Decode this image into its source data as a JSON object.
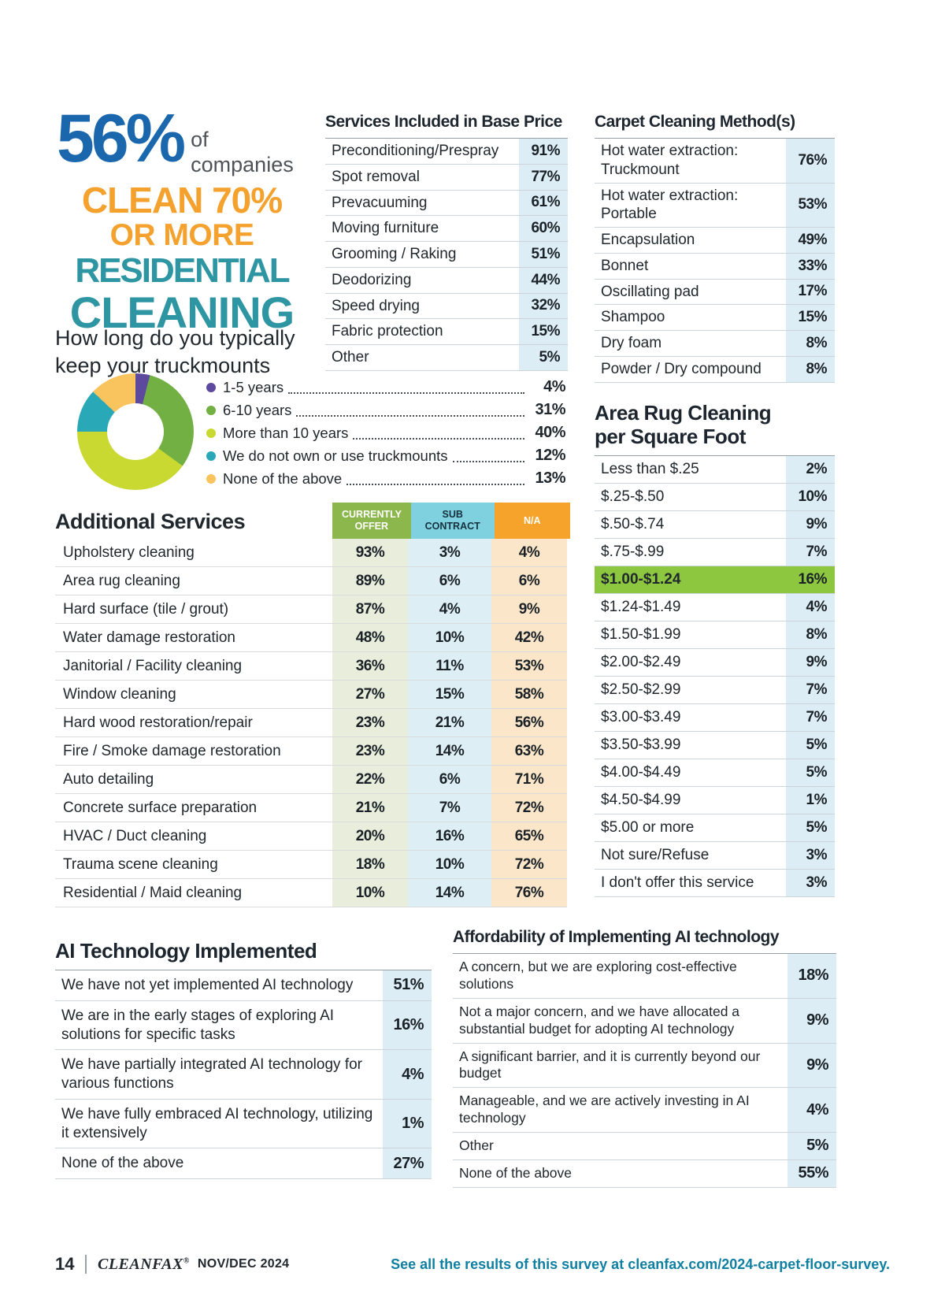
{
  "headline": {
    "stat": "56%",
    "suffix_line1": "of",
    "suffix_line2": "companies",
    "line1": "CLEAN 70%",
    "line2": "OR MORE",
    "line3": "RESIDENTIAL",
    "line4": "CLEANING"
  },
  "services": {
    "title": "Services Included in Base Price",
    "rows": [
      {
        "label": "Preconditioning/Prespray",
        "value": "91%"
      },
      {
        "label": "Spot removal",
        "value": "77%"
      },
      {
        "label": "Prevacuuming",
        "value": "61%"
      },
      {
        "label": "Moving furniture",
        "value": "60%"
      },
      {
        "label": "Grooming / Raking",
        "value": "51%"
      },
      {
        "label": "Deodorizing",
        "value": "44%"
      },
      {
        "label": "Speed drying",
        "value": "32%"
      },
      {
        "label": "Fabric protection",
        "value": "15%"
      },
      {
        "label": "Other",
        "value": "5%"
      }
    ]
  },
  "carpet": {
    "title": "Carpet Cleaning Method(s)",
    "rows": [
      {
        "label": "Hot water extraction: Truckmount",
        "value": "76%"
      },
      {
        "label": "Hot water extraction: Portable",
        "value": "53%"
      },
      {
        "label": "Encapsulation",
        "value": "49%"
      },
      {
        "label": "Bonnet",
        "value": "33%"
      },
      {
        "label": "Oscillating pad",
        "value": "17%"
      },
      {
        "label": "Shampoo",
        "value": "15%"
      },
      {
        "label": "Dry foam",
        "value": "8%"
      },
      {
        "label": "Powder / Dry compound",
        "value": "8%"
      }
    ]
  },
  "truckmounts": {
    "title_lines": [
      "How long do you typically",
      "keep your truckmounts"
    ],
    "segments": [
      {
        "label": "1-5 years",
        "value": "4%",
        "pct": 4,
        "color": "#5d4a9f"
      },
      {
        "label": "6-10 years",
        "value": "31%",
        "pct": 31,
        "color": "#72b043"
      },
      {
        "label": "More than 10 years",
        "value": "40%",
        "pct": 40,
        "color": "#c9d932"
      },
      {
        "label": "We do not own or use truckmounts",
        "value": "12%",
        "pct": 12,
        "color": "#29a9b8"
      },
      {
        "label": "None of the above",
        "value": "13%",
        "pct": 13,
        "color": "#f9c45e"
      }
    ]
  },
  "additional": {
    "title": "Additional Services",
    "col1": "CURRENTLY OFFER",
    "col2": "SUB CONTRACT",
    "col3": "N/A",
    "rows": [
      {
        "label": "Upholstery cleaning",
        "offer": "93%",
        "sub": "3%",
        "na": "4%"
      },
      {
        "label": "Area rug cleaning",
        "offer": "89%",
        "sub": "6%",
        "na": "6%"
      },
      {
        "label": "Hard surface (tile / grout)",
        "offer": "87%",
        "sub": "4%",
        "na": "9%"
      },
      {
        "label": "Water damage restoration",
        "offer": "48%",
        "sub": "10%",
        "na": "42%"
      },
      {
        "label": "Janitorial / Facility cleaning",
        "offer": "36%",
        "sub": "11%",
        "na": "53%"
      },
      {
        "label": "Window cleaning",
        "offer": "27%",
        "sub": "15%",
        "na": "58%"
      },
      {
        "label": "Hard wood restoration/repair",
        "offer": "23%",
        "sub": "21%",
        "na": "56%"
      },
      {
        "label": "Fire / Smoke damage restoration",
        "offer": "23%",
        "sub": "14%",
        "na": "63%"
      },
      {
        "label": "Auto detailing",
        "offer": "22%",
        "sub": "6%",
        "na": "71%"
      },
      {
        "label": "Concrete surface preparation",
        "offer": "21%",
        "sub": "7%",
        "na": "72%"
      },
      {
        "label": "HVAC / Duct cleaning",
        "offer": "20%",
        "sub": "16%",
        "na": "65%"
      },
      {
        "label": "Trauma scene cleaning",
        "offer": "18%",
        "sub": "10%",
        "na": "72%"
      },
      {
        "label": "Residential / Maid cleaning",
        "offer": "10%",
        "sub": "14%",
        "na": "76%"
      }
    ]
  },
  "arearug": {
    "title_lines": [
      "Area Rug Cleaning",
      "per Square Foot"
    ],
    "rows": [
      {
        "label": "Less than $.25",
        "value": "2%"
      },
      {
        "label": "$.25-$.50",
        "value": "10%"
      },
      {
        "label": "$.50-$.74",
        "value": "9%"
      },
      {
        "label": "$.75-$.99",
        "value": "7%"
      },
      {
        "label": "$1.00-$1.24",
        "value": "16%",
        "cls": "highlight"
      },
      {
        "label": "$1.24-$1.49",
        "value": "4%"
      },
      {
        "label": "$1.50-$1.99",
        "value": "8%"
      },
      {
        "label": "$2.00-$2.49",
        "value": "9%"
      },
      {
        "label": "$2.50-$2.99",
        "value": "7%"
      },
      {
        "label": "$3.00-$3.49",
        "value": "7%"
      },
      {
        "label": "$3.50-$3.99",
        "value": "5%"
      },
      {
        "label": "$4.00-$4.49",
        "value": "5%"
      },
      {
        "label": "$4.50-$4.99",
        "value": "1%"
      },
      {
        "label": "$5.00 or more",
        "value": "5%"
      },
      {
        "label": "Not sure/Refuse",
        "value": "3%"
      },
      {
        "label": "I don't offer this service",
        "value": "3%"
      }
    ]
  },
  "ai": {
    "title": "AI Technology Implemented",
    "rows": [
      {
        "label": "We have not yet implemented AI technology",
        "value": "51%"
      },
      {
        "label": "We are in the early stages of exploring AI solutions for specific tasks",
        "value": "16%"
      },
      {
        "label": "We have partially integrated AI technology for various functions",
        "value": "4%"
      },
      {
        "label": "We have fully embraced AI technology, utilizing it extensively",
        "value": "1%"
      },
      {
        "label": "None of the above",
        "value": "27%"
      }
    ]
  },
  "afford": {
    "title": "Affordability of Implementing AI technology",
    "rows": [
      {
        "label": "A concern, but we are exploring cost-effective solutions",
        "value": "18%"
      },
      {
        "label": "Not a major concern, and we have allocated a substantial budget for adopting AI technology",
        "value": "9%"
      },
      {
        "label": "A significant barrier, and it is currently beyond our budget",
        "value": "9%"
      },
      {
        "label": "Manageable, and we are actively investing in AI technology",
        "value": "4%"
      },
      {
        "label": "Other",
        "value": "5%"
      },
      {
        "label": "None of the above",
        "value": "55%"
      }
    ]
  },
  "footer": {
    "page": "14",
    "brand": "CLEANFAX",
    "reg": "®",
    "issue": "NOV/DEC 2024",
    "link": "See all the results of this survey at cleanfax.com/2024-carpet-floor-survey."
  },
  "chart_data": [
    {
      "type": "table",
      "title": "Services Included in Base Price",
      "categories": [
        "Preconditioning/Prespray",
        "Spot removal",
        "Prevacuuming",
        "Moving furniture",
        "Grooming / Raking",
        "Deodorizing",
        "Speed drying",
        "Fabric protection",
        "Other"
      ],
      "values": [
        91,
        77,
        61,
        60,
        51,
        44,
        32,
        15,
        5
      ],
      "unit": "%"
    },
    {
      "type": "table",
      "title": "Carpet Cleaning Method(s)",
      "categories": [
        "Hot water extraction: Truckmount",
        "Hot water extraction: Portable",
        "Encapsulation",
        "Bonnet",
        "Oscillating pad",
        "Shampoo",
        "Dry foam",
        "Powder / Dry compound"
      ],
      "values": [
        76,
        53,
        49,
        33,
        17,
        15,
        8,
        8
      ],
      "unit": "%"
    },
    {
      "type": "pie",
      "title": "How long do you typically keep your truckmounts",
      "categories": [
        "1-5 years",
        "6-10 years",
        "More than 10 years",
        "We do not own or use truckmounts",
        "None of the above"
      ],
      "values": [
        4,
        31,
        40,
        12,
        13
      ],
      "colors": [
        "#5d4a9f",
        "#72b043",
        "#c9d932",
        "#29a9b8",
        "#f9c45e"
      ],
      "donut": true,
      "legend_position": "right",
      "unit": "%"
    },
    {
      "type": "table",
      "title": "Additional Services",
      "categories": [
        "Upholstery cleaning",
        "Area rug cleaning",
        "Hard surface (tile / grout)",
        "Water damage restoration",
        "Janitorial / Facility cleaning",
        "Window cleaning",
        "Hard wood restoration/repair",
        "Fire / Smoke damage restoration",
        "Auto detailing",
        "Concrete surface preparation",
        "HVAC / Duct cleaning",
        "Trauma scene cleaning",
        "Residential / Maid cleaning"
      ],
      "series": [
        {
          "name": "Currently offer",
          "values": [
            93,
            89,
            87,
            48,
            36,
            27,
            23,
            23,
            22,
            21,
            20,
            18,
            10
          ]
        },
        {
          "name": "Sub contract",
          "values": [
            3,
            6,
            4,
            10,
            11,
            15,
            21,
            14,
            6,
            7,
            16,
            10,
            14
          ]
        },
        {
          "name": "N/A",
          "values": [
            4,
            6,
            9,
            42,
            53,
            58,
            56,
            63,
            71,
            72,
            65,
            72,
            76
          ]
        }
      ],
      "unit": "%"
    },
    {
      "type": "table",
      "title": "Area Rug Cleaning per Square Foot",
      "categories": [
        "Less than $.25",
        "$.25-$.50",
        "$.50-$.74",
        "$.75-$.99",
        "$1.00-$1.24",
        "$1.24-$1.49",
        "$1.50-$1.99",
        "$2.00-$2.49",
        "$2.50-$2.99",
        "$3.00-$3.49",
        "$3.50-$3.99",
        "$4.00-$4.49",
        "$4.50-$4.99",
        "$5.00 or more",
        "Not sure/Refuse",
        "I don't offer this service"
      ],
      "values": [
        2,
        10,
        9,
        7,
        16,
        4,
        8,
        9,
        7,
        7,
        5,
        5,
        1,
        5,
        3,
        3
      ],
      "highlighted_category": "$1.00-$1.24",
      "highlight_color": "#8dc63f",
      "unit": "%"
    },
    {
      "type": "table",
      "title": "AI Technology Implemented",
      "categories": [
        "We have not yet implemented AI technology",
        "We are in the early stages of exploring AI solutions for specific tasks",
        "We have partially integrated AI technology for various functions",
        "We have fully embraced AI technology, utilizing it extensively",
        "None of the above"
      ],
      "values": [
        51,
        16,
        4,
        1,
        27
      ],
      "unit": "%"
    },
    {
      "type": "table",
      "title": "Affordability of Implementing AI technology",
      "categories": [
        "A concern, but we are exploring cost-effective solutions",
        "Not a major concern, and we have allocated a substantial budget for adopting AI technology",
        "A significant barrier, and it is currently beyond our budget",
        "Manageable, and we are actively investing in AI technology",
        "Other",
        "None of the above"
      ],
      "values": [
        18,
        9,
        9,
        4,
        5,
        55
      ],
      "unit": "%"
    },
    {
      "type": "stat",
      "title": "Headline statistic",
      "value": 56,
      "unit": "%",
      "text": "56% of companies clean 70% or more residential cleaning"
    }
  ]
}
